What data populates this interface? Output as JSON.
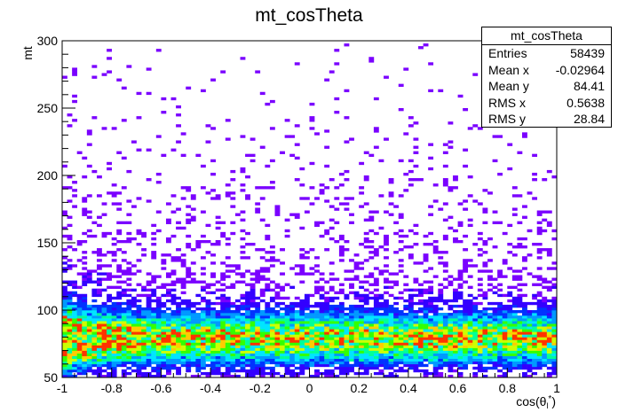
{
  "chart_data": {
    "type": "heatmap",
    "title": "mt_cosTheta",
    "xlabel": "cos(θ_l*)",
    "xlabel_main": "cos(θ",
    "xlabel_sub": "l",
    "xlabel_sup": "*",
    "xlabel_close": ")",
    "ylabel": "mt",
    "xlim": [
      -1,
      1
    ],
    "ylim": [
      50,
      300
    ],
    "x_ticks": [
      -1,
      -0.8,
      -0.6,
      -0.4,
      -0.2,
      0,
      0.2,
      0.4,
      0.6,
      0.8,
      1
    ],
    "x_tick_labels": [
      "-1",
      "-0.8",
      "-0.6",
      "-0.4",
      "-0.2",
      "0",
      "0.2",
      "0.4",
      "0.6",
      "0.8",
      "1"
    ],
    "y_ticks": [
      50,
      100,
      150,
      200,
      250,
      300
    ],
    "y_tick_labels": [
      "50",
      "100",
      "150",
      "200",
      "250",
      "300"
    ],
    "density_profile": {
      "y_peak": 80,
      "y_core_sigma": 12,
      "y_tail_scale": 55,
      "x_edge_enhancement": "higher density near x = -1"
    },
    "colormap": [
      "#7a00ff",
      "#3300ff",
      "#0033ff",
      "#0099ff",
      "#00e5ff",
      "#00ff99",
      "#33ff00",
      "#ccff00",
      "#ffcc00",
      "#ff3300"
    ],
    "stats": {
      "title": "mt_cosTheta",
      "entries": [
        {
          "label": "Entries",
          "value": "58439"
        },
        {
          "label": "Mean x",
          "value": "-0.02964"
        },
        {
          "label": "Mean y",
          "value": "84.41"
        },
        {
          "label": "RMS x",
          "value": "0.5638"
        },
        {
          "label": "RMS y",
          "value": "28.84"
        }
      ]
    }
  }
}
